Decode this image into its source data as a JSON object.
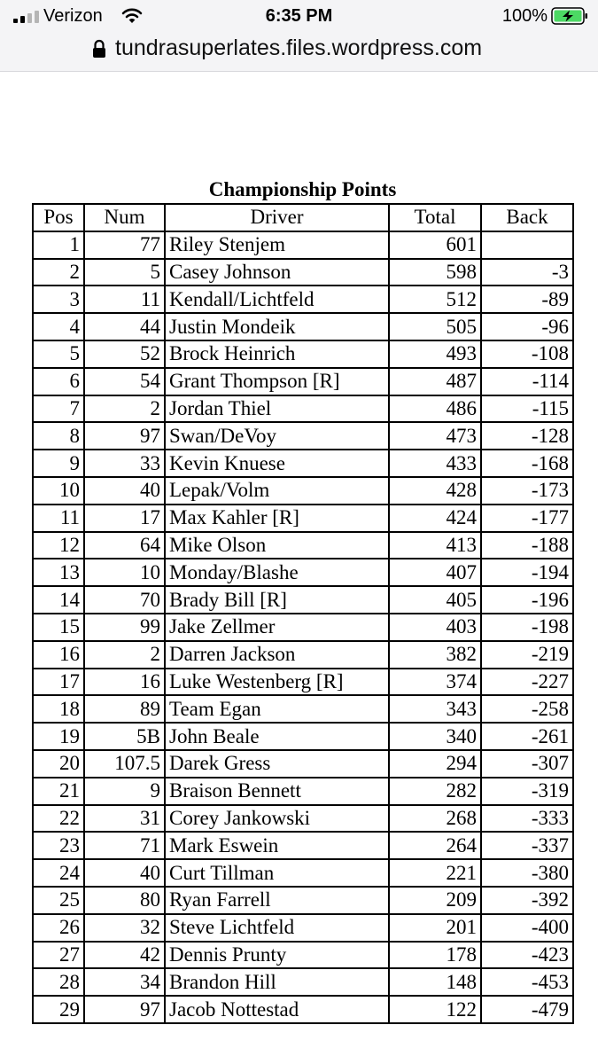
{
  "status_bar": {
    "carrier": "Verizon",
    "time": "6:35 PM",
    "battery_percent": "100%"
  },
  "browser": {
    "url": "tundrasuperlates.files.wordpress.com"
  },
  "document": {
    "title": "Championship Points",
    "columns": [
      "Pos",
      "Num",
      "Driver",
      "Total",
      "Back"
    ],
    "rows": [
      [
        "1",
        "77",
        "Riley Stenjem",
        "601",
        ""
      ],
      [
        "2",
        "5",
        "Casey Johnson",
        "598",
        "-3"
      ],
      [
        "3",
        "11",
        "Kendall/Lichtfeld",
        "512",
        "-89"
      ],
      [
        "4",
        "44",
        "Justin Mondeik",
        "505",
        "-96"
      ],
      [
        "5",
        "52",
        "Brock Heinrich",
        "493",
        "-108"
      ],
      [
        "6",
        "54",
        "Grant Thompson [R]",
        "487",
        "-114"
      ],
      [
        "7",
        "2",
        "Jordan Thiel",
        "486",
        "-115"
      ],
      [
        "8",
        "97",
        "Swan/DeVoy",
        "473",
        "-128"
      ],
      [
        "9",
        "33",
        "Kevin Knuese",
        "433",
        "-168"
      ],
      [
        "10",
        "40",
        "Lepak/Volm",
        "428",
        "-173"
      ],
      [
        "11",
        "17",
        "Max Kahler [R]",
        "424",
        "-177"
      ],
      [
        "12",
        "64",
        "Mike Olson",
        "413",
        "-188"
      ],
      [
        "13",
        "10",
        "Monday/Blashe",
        "407",
        "-194"
      ],
      [
        "14",
        "70",
        "Brady Bill [R]",
        "405",
        "-196"
      ],
      [
        "15",
        "99",
        "Jake Zellmer",
        "403",
        "-198"
      ],
      [
        "16",
        "2",
        "Darren Jackson",
        "382",
        "-219"
      ],
      [
        "17",
        "16",
        "Luke Westenberg [R]",
        "374",
        "-227"
      ],
      [
        "18",
        "89",
        "Team Egan",
        "343",
        "-258"
      ],
      [
        "19",
        "5B",
        "John Beale",
        "340",
        "-261"
      ],
      [
        "20",
        "107.5",
        "Darek Gress",
        "294",
        "-307"
      ],
      [
        "21",
        "9",
        "Braison Bennett",
        "282",
        "-319"
      ],
      [
        "22",
        "31",
        "Corey Jankowski",
        "268",
        "-333"
      ],
      [
        "23",
        "71",
        "Mark Eswein",
        "264",
        "-337"
      ],
      [
        "24",
        "40",
        "Curt Tillman",
        "221",
        "-380"
      ],
      [
        "25",
        "80",
        "Ryan Farrell",
        "209",
        "-392"
      ],
      [
        "26",
        "32",
        "Steve Lichtfeld",
        "201",
        "-400"
      ],
      [
        "27",
        "42",
        "Dennis Prunty",
        "178",
        "-423"
      ],
      [
        "28",
        "34",
        "Brandon Hill",
        "148",
        "-453"
      ],
      [
        "29",
        "97",
        "Jacob Nottestad",
        "122",
        "-479"
      ]
    ]
  }
}
